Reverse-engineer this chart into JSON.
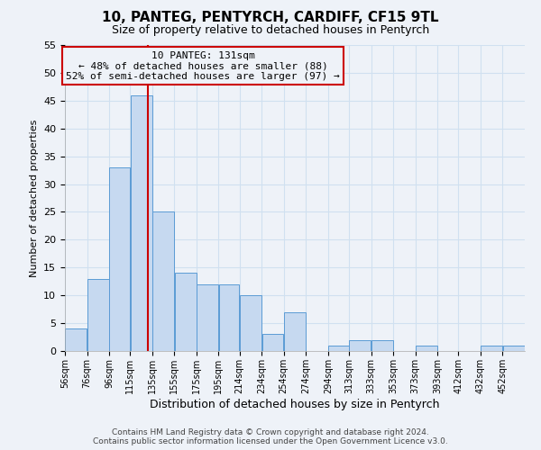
{
  "title": "10, PANTEG, PENTYRCH, CARDIFF, CF15 9TL",
  "subtitle": "Size of property relative to detached houses in Pentyrch",
  "xlabel": "Distribution of detached houses by size in Pentyrch",
  "ylabel": "Number of detached properties",
  "bin_labels": [
    "56sqm",
    "76sqm",
    "96sqm",
    "115sqm",
    "135sqm",
    "155sqm",
    "175sqm",
    "195sqm",
    "214sqm",
    "234sqm",
    "254sqm",
    "274sqm",
    "294sqm",
    "313sqm",
    "333sqm",
    "353sqm",
    "373sqm",
    "393sqm",
    "412sqm",
    "432sqm",
    "452sqm"
  ],
  "bin_edges": [
    56,
    76,
    96,
    115,
    135,
    155,
    175,
    195,
    214,
    234,
    254,
    274,
    294,
    313,
    333,
    353,
    373,
    393,
    412,
    432,
    452,
    472
  ],
  "counts": [
    4,
    13,
    33,
    46,
    25,
    14,
    12,
    12,
    10,
    3,
    7,
    0,
    1,
    2,
    2,
    0,
    1,
    0,
    0,
    1,
    1
  ],
  "bar_color": "#c6d9f0",
  "bar_edge_color": "#5b9bd5",
  "grid_color": "#d0e0f0",
  "vline_x": 131,
  "vline_color": "#cc0000",
  "annotation_title": "10 PANTEG: 131sqm",
  "annotation_line1": "← 48% of detached houses are smaller (88)",
  "annotation_line2": "52% of semi-detached houses are larger (97) →",
  "annotation_box_color": "#cc0000",
  "ylim": [
    0,
    55
  ],
  "yticks": [
    0,
    5,
    10,
    15,
    20,
    25,
    30,
    35,
    40,
    45,
    50,
    55
  ],
  "footnote1": "Contains HM Land Registry data © Crown copyright and database right 2024.",
  "footnote2": "Contains public sector information licensed under the Open Government Licence v3.0.",
  "bg_color": "#eef2f8"
}
